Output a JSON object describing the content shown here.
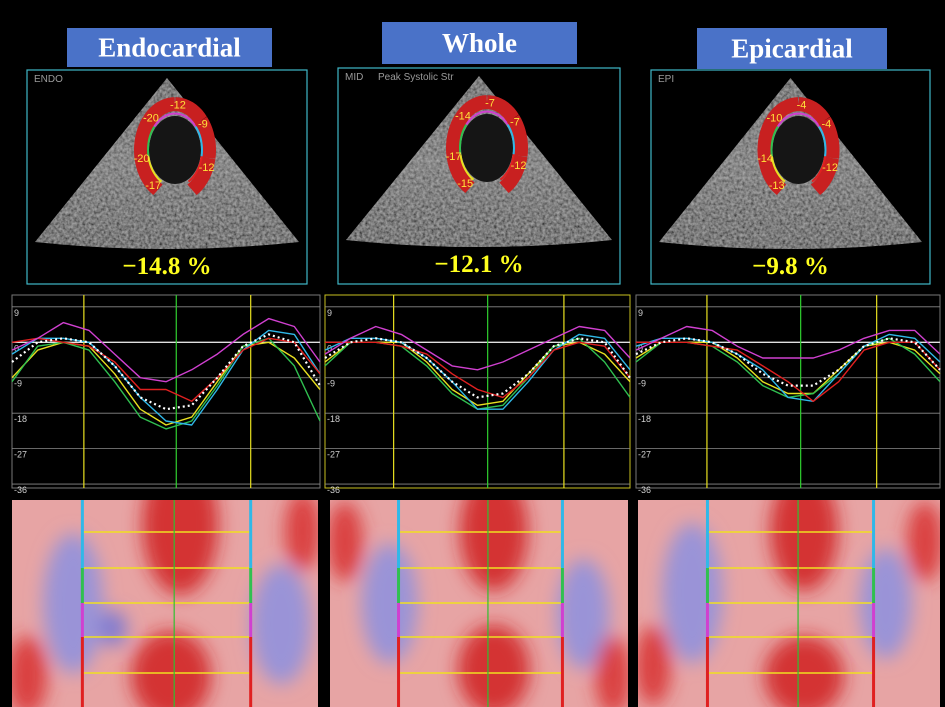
{
  "panels": [
    {
      "header": "Endocardial",
      "view_label": "ENDO",
      "gls": "−14.8 %",
      "segments": [
        "-20",
        "-12",
        "-9",
        "-20",
        "-12",
        "-17"
      ],
      "chart_data": {
        "type": "line",
        "x": [
          0,
          1,
          2,
          3,
          4,
          5,
          6,
          7,
          8,
          9,
          10,
          11,
          12
        ],
        "xlim": [
          0,
          12
        ],
        "ylim": [
          -37,
          12
        ],
        "yticks": [
          9,
          0,
          -9,
          -18,
          -27,
          -36
        ],
        "event_lines": [
          {
            "x": 2.8,
            "color": "#e8e020"
          },
          {
            "x": 6.4,
            "color": "#30d030"
          },
          {
            "x": 9.3,
            "color": "#e8e020"
          }
        ],
        "series": [
          {
            "color": "#e8e020",
            "values": [
              -9,
              -2,
              0,
              -1,
              -8,
              -17,
              -21,
              -19,
              -10,
              -1,
              0,
              -4,
              -12
            ]
          },
          {
            "color": "#30c050",
            "values": [
              -10,
              -1,
              0,
              -2,
              -10,
              -19,
              -22,
              -20,
              -11,
              -1,
              1,
              -6,
              -20
            ]
          },
          {
            "color": "#30b8e8",
            "values": [
              -3,
              1,
              1,
              0,
              -6,
              -14,
              -20,
              -21,
              -12,
              -2,
              3,
              2,
              -8
            ]
          },
          {
            "color": "#e02020",
            "values": [
              0,
              1,
              0,
              -1,
              -5,
              -12,
              -12,
              -15,
              -9,
              -2,
              1,
              0,
              -8
            ]
          },
          {
            "color": "#d040d0",
            "values": [
              -2,
              1,
              5,
              3,
              -3,
              -9,
              -10,
              -7,
              -3,
              2,
              6,
              4,
              -5
            ]
          },
          {
            "color": "#ffffff",
            "style": "dotted",
            "values": [
              -5,
              0,
              1,
              0,
              -6,
              -14,
              -17,
              -16,
              -9,
              -1,
              2,
              0,
              -11
            ]
          }
        ]
      }
    },
    {
      "header": "Whole",
      "view_label": "MID",
      "view_note": "Peak Systolic Str",
      "gls": "−12.1 %",
      "segments": [
        "-14",
        "-7",
        "-7",
        "-17",
        "-12",
        "-15"
      ],
      "chart_data": {
        "type": "line",
        "x": [
          0,
          1,
          2,
          3,
          4,
          5,
          6,
          7,
          8,
          9,
          10,
          11,
          12
        ],
        "xlim": [
          0,
          12
        ],
        "ylim": [
          -37,
          12
        ],
        "yticks": [
          9,
          0,
          -9,
          -18,
          -27,
          -36
        ],
        "event_lines": [
          {
            "x": 2.7,
            "color": "#e8e020"
          },
          {
            "x": 6.4,
            "color": "#30d030"
          },
          {
            "x": 9.4,
            "color": "#e8e020"
          }
        ],
        "series": [
          {
            "color": "#e8e020",
            "values": [
              -5,
              0,
              0,
              0,
              -5,
              -12,
              -16,
              -15,
              -8,
              -1,
              0,
              -3,
              -10
            ]
          },
          {
            "color": "#30c050",
            "values": [
              -6,
              0,
              0,
              -1,
              -6,
              -13,
              -17,
              -16,
              -9,
              -1,
              1,
              -5,
              -14
            ]
          },
          {
            "color": "#30b8e8",
            "values": [
              -2,
              1,
              1,
              0,
              -4,
              -10,
              -17,
              -17,
              -10,
              -2,
              2,
              1,
              -7
            ]
          },
          {
            "color": "#e02020",
            "values": [
              0,
              0,
              0,
              -1,
              -3,
              -8,
              -12,
              -14,
              -9,
              -2,
              0,
              -1,
              -9
            ]
          },
          {
            "color": "#d040d0",
            "values": [
              -3,
              1,
              4,
              2,
              -2,
              -6,
              -7,
              -5,
              -2,
              1,
              4,
              3,
              -4
            ]
          },
          {
            "color": "#ffffff",
            "style": "dotted",
            "values": [
              -4,
              0,
              1,
              0,
              -4,
              -10,
              -14,
              -13,
              -8,
              -1,
              1,
              0,
              -9
            ]
          }
        ]
      }
    },
    {
      "header": "Epicardial",
      "view_label": "EPI",
      "gls": "−9.8 %",
      "segments": [
        "-10",
        "-4",
        "-4",
        "-14",
        "-12",
        "-13"
      ],
      "chart_data": {
        "type": "line",
        "x": [
          0,
          1,
          2,
          3,
          4,
          5,
          6,
          7,
          8,
          9,
          10,
          11,
          12
        ],
        "xlim": [
          0,
          12
        ],
        "ylim": [
          -37,
          12
        ],
        "yticks": [
          9,
          0,
          -9,
          -18,
          -27,
          -36
        ],
        "event_lines": [
          {
            "x": 2.8,
            "color": "#e8e020"
          },
          {
            "x": 6.5,
            "color": "#30d030"
          },
          {
            "x": 9.5,
            "color": "#e8e020"
          }
        ],
        "series": [
          {
            "color": "#e8e020",
            "values": [
              -4,
              0,
              0,
              0,
              -4,
              -10,
              -13,
              -13,
              -7,
              -1,
              0,
              -2,
              -8
            ]
          },
          {
            "color": "#30c050",
            "values": [
              -5,
              0,
              0,
              -1,
              -5,
              -11,
              -14,
              -13,
              -8,
              -1,
              1,
              -3,
              -10
            ]
          },
          {
            "color": "#30b8e8",
            "values": [
              -1,
              1,
              1,
              0,
              -3,
              -7,
              -14,
              -15,
              -8,
              -1,
              2,
              1,
              -5
            ]
          },
          {
            "color": "#e02020",
            "values": [
              0,
              0,
              0,
              -1,
              -2,
              -6,
              -10,
              -15,
              -10,
              -2,
              0,
              0,
              -7
            ]
          },
          {
            "color": "#d040d0",
            "values": [
              -2,
              1,
              4,
              3,
              -1,
              -4,
              -4,
              -4,
              -2,
              1,
              3,
              3,
              -3
            ]
          },
          {
            "color": "#ffffff",
            "style": "dotted",
            "values": [
              -3,
              0,
              1,
              0,
              -3,
              -8,
              -11,
              -11,
              -7,
              -1,
              1,
              0,
              -7
            ]
          }
        ]
      }
    }
  ]
}
